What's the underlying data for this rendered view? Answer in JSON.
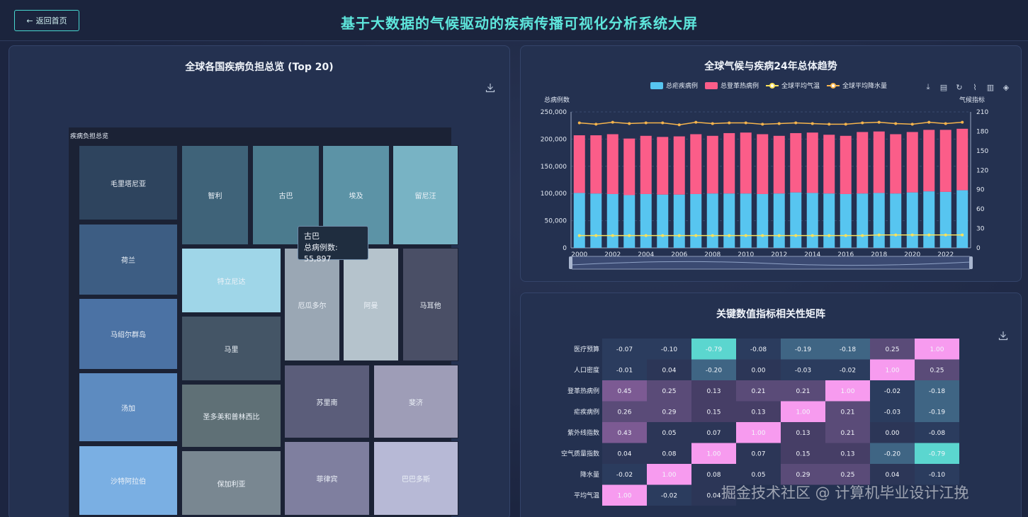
{
  "header": {
    "back_label": "返回首页",
    "title": "基于大数据的气候驱动的疾病传播可视化分析系统大屏"
  },
  "treemap": {
    "title": "全球各国疾病负担总览 (Top 20)",
    "header_label": "疾病负担总览",
    "tooltip_name": "古巴",
    "tooltip_value": "总病例数: 55,897",
    "cells": [
      "毛里塔尼亚",
      "智利",
      "古巴",
      "埃及",
      "留尼汪",
      "荷兰",
      "特立尼达",
      "厄瓜多尔",
      "阿曼",
      "马耳他",
      "马绍尔群岛",
      "马里",
      "苏里南",
      "斐济",
      "汤加",
      "圣多美和普林西比",
      "沙特阿拉伯",
      "保加利亚",
      "菲律宾",
      "巴巴多斯"
    ],
    "colors": [
      "#2e445e",
      "#3f6379",
      "#4b7b8e",
      "#5c93a6",
      "#78b3c4",
      "#3d5d83",
      "#9fd6e8",
      "#9aa7b4",
      "#b5c3cc",
      "#4a4f66",
      "#4b72a4",
      "#445566",
      "#5b5d7a",
      "#9e9db7",
      "#5d8bc0",
      "#5f7076",
      "#7aafe3",
      "#798791",
      "#7f7f9f",
      "#b7b9d6"
    ]
  },
  "trend": {
    "title": "全球气候与疾病24年总体趋势",
    "legend": [
      "总疟疾病例",
      "总登革热病例",
      "全球平均气温",
      "全球平均降水量"
    ],
    "colors": {
      "malaria": "#57c5f0",
      "dengue": "#fb5d89",
      "temp": "#fae15a",
      "precip": "#f6b44c"
    }
  },
  "chart_data": [
    {
      "type": "bar",
      "title": "全球气候与疾病24年总体趋势",
      "ylabel": "总病例数",
      "y2label": "气候指标",
      "ylim": [
        0,
        250000
      ],
      "y2lim": [
        0,
        210
      ],
      "yticks": [
        "0",
        "50,000",
        "100,000",
        "150,000",
        "200,000",
        "250,000"
      ],
      "y2ticks": [
        "0",
        "30",
        "60",
        "90",
        "120",
        "150",
        "180",
        "210"
      ],
      "xticks": [
        "2000",
        "2002",
        "2004",
        "2006",
        "2008",
        "2010",
        "2012",
        "2014",
        "2016",
        "2018",
        "2020",
        "2022"
      ],
      "categories": [
        "2000",
        "2001",
        "2002",
        "2003",
        "2004",
        "2005",
        "2006",
        "2007",
        "2008",
        "2009",
        "2010",
        "2011",
        "2012",
        "2013",
        "2014",
        "2015",
        "2016",
        "2017",
        "2018",
        "2019",
        "2020",
        "2021",
        "2022",
        "2023"
      ],
      "series": [
        {
          "name": "总疟疾病例",
          "stack": "a",
          "values": [
            101000,
            100000,
            99000,
            97000,
            99000,
            98000,
            98000,
            99000,
            100000,
            100000,
            100000,
            99000,
            100000,
            102000,
            101000,
            100000,
            99000,
            100000,
            101000,
            100000,
            102000,
            104000,
            103000,
            106000
          ]
        },
        {
          "name": "总登革热病例",
          "stack": "a",
          "values": [
            106000,
            107000,
            110000,
            104000,
            107000,
            106000,
            107000,
            110000,
            106000,
            111000,
            112000,
            110000,
            106000,
            109000,
            111000,
            108000,
            107000,
            113000,
            113000,
            109000,
            111000,
            113000,
            114000,
            113000
          ]
        },
        {
          "name": "全球平均气温",
          "axis": "y2",
          "values": [
            19,
            19,
            19,
            19,
            19,
            19,
            19,
            19,
            19,
            19,
            19,
            19,
            19,
            19,
            19,
            19,
            19,
            19,
            20,
            20,
            20,
            20,
            20,
            20
          ]
        },
        {
          "name": "全球平均降水量",
          "axis": "y2",
          "values": [
            193,
            191,
            194,
            192,
            193,
            193,
            190,
            194,
            192,
            193,
            193,
            191,
            192,
            193,
            192,
            191,
            191,
            193,
            194,
            192,
            191,
            194,
            192,
            194
          ]
        }
      ]
    },
    {
      "type": "heatmap",
      "title": "关键数值指标相关性矩阵",
      "rows": [
        "医疗预算",
        "人口密度",
        "登革热病例",
        "疟疾病例",
        "紫外线指数",
        "空气质量指数",
        "降水量",
        "平均气温"
      ],
      "values": [
        [
          "-0.07",
          "-0.10",
          "-0.79",
          "-0.08",
          "-0.19",
          "-0.18",
          "0.25",
          "1.00"
        ],
        [
          "-0.01",
          "0.04",
          "-0.20",
          "0.00",
          "-0.03",
          "-0.02",
          "1.00",
          "0.25"
        ],
        [
          "0.45",
          "0.25",
          "0.13",
          "0.21",
          "0.21",
          "1.00",
          "-0.02",
          "-0.18"
        ],
        [
          "0.26",
          "0.29",
          "0.15",
          "0.13",
          "1.00",
          "0.21",
          "-0.03",
          "-0.19"
        ],
        [
          "0.43",
          "0.05",
          "0.07",
          "1.00",
          "0.13",
          "0.21",
          "0.00",
          "-0.08"
        ],
        [
          "0.04",
          "0.08",
          "1.00",
          "0.07",
          "0.15",
          "0.13",
          "-0.20",
          "-0.79"
        ],
        [
          "-0.02",
          "1.00",
          "0.08",
          "0.05",
          "0.29",
          "0.25",
          "0.04",
          "-0.10"
        ],
        [
          "1.00",
          "-0.02",
          "0.04",
          "",
          "",
          "",
          "",
          ""
        ]
      ]
    }
  ],
  "watermark": "掘金技术社区 @ 计算机毕业设计江挽"
}
